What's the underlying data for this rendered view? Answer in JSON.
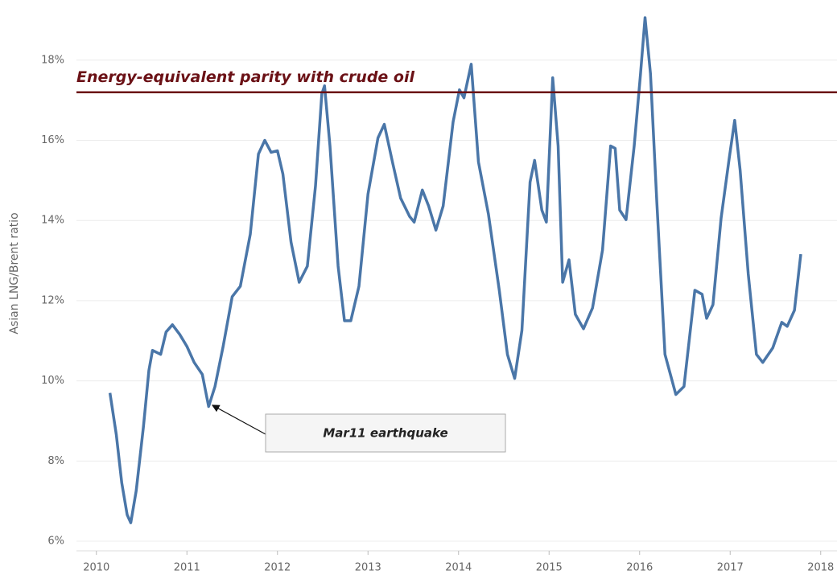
{
  "chart_data": {
    "type": "line",
    "y_label": "Asian LNG/Brent ratio",
    "xlim": [
      2009.78,
      2018.18
    ],
    "xticks": [
      2010,
      2011,
      2012,
      2013,
      2014,
      2015,
      2016,
      2017,
      2018
    ],
    "ylim": [
      5.76,
      19.3
    ],
    "yticks": [
      {
        "value": 6,
        "label": "6%"
      },
      {
        "value": 8,
        "label": "8%"
      },
      {
        "value": 10,
        "label": "10%"
      },
      {
        "value": 12,
        "label": "12%"
      },
      {
        "value": 14,
        "label": "14%"
      },
      {
        "value": 16,
        "label": "16%"
      },
      {
        "value": 18,
        "label": "18%"
      }
    ],
    "grid": true,
    "series": [
      {
        "color": "#4a76a8",
        "x": [
          2010.15,
          2010.22,
          2010.28,
          2010.34,
          2010.38,
          2010.44,
          2010.52,
          2010.58,
          2010.62,
          2010.71,
          2010.77,
          2010.84,
          2010.92,
          2011.0,
          2011.08,
          2011.17,
          2011.24,
          2011.31,
          2011.4,
          2011.5,
          2011.59,
          2011.7,
          2011.79,
          2011.86,
          2011.93,
          2012.0,
          2012.06,
          2012.15,
          2012.24,
          2012.33,
          2012.42,
          2012.49,
          2012.52,
          2012.58,
          2012.67,
          2012.74,
          2012.81,
          2012.9,
          2013.0,
          2013.11,
          2013.18,
          2013.27,
          2013.36,
          2013.46,
          2013.51,
          2013.6,
          2013.67,
          2013.75,
          2013.83,
          2013.94,
          2014.01,
          2014.06,
          2014.14,
          2014.22,
          2014.33,
          2014.45,
          2014.54,
          2014.62,
          2014.7,
          2014.79,
          2014.84,
          2014.92,
          2014.97,
          2015.04,
          2015.1,
          2015.15,
          2015.22,
          2015.29,
          2015.38,
          2015.48,
          2015.59,
          2015.68,
          2015.73,
          2015.78,
          2015.85,
          2015.94,
          2016.01,
          2016.06,
          2016.12,
          2016.19,
          2016.28,
          2016.4,
          2016.49,
          2016.61,
          2016.69,
          2016.74,
          2016.81,
          2016.9,
          2016.99,
          2017.05,
          2017.11,
          2017.2,
          2017.29,
          2017.36,
          2017.47,
          2017.57,
          2017.63,
          2017.71,
          2017.78
        ],
        "values": [
          9.7,
          8.66,
          7.46,
          6.66,
          6.46,
          7.26,
          8.86,
          10.26,
          10.76,
          10.66,
          11.22,
          11.4,
          11.16,
          10.86,
          10.46,
          10.16,
          9.36,
          9.86,
          10.86,
          12.1,
          12.36,
          13.66,
          15.66,
          16.0,
          15.7,
          15.74,
          15.16,
          13.46,
          12.46,
          12.86,
          14.86,
          17.16,
          17.36,
          15.86,
          12.86,
          11.5,
          11.5,
          12.36,
          14.66,
          16.06,
          16.4,
          15.46,
          14.56,
          14.1,
          13.96,
          14.76,
          14.36,
          13.76,
          14.36,
          16.46,
          17.26,
          17.06,
          17.9,
          15.46,
          14.16,
          12.26,
          10.66,
          10.06,
          11.26,
          14.96,
          15.5,
          14.26,
          13.96,
          17.56,
          15.86,
          12.46,
          13.02,
          11.66,
          11.3,
          11.82,
          13.26,
          15.86,
          15.8,
          14.26,
          14.02,
          15.86,
          17.66,
          19.06,
          17.66,
          14.46,
          10.66,
          9.66,
          9.86,
          12.26,
          12.16,
          11.56,
          11.9,
          14.06,
          15.56,
          16.5,
          15.26,
          12.66,
          10.66,
          10.46,
          10.82,
          11.46,
          11.36,
          11.76,
          13.16
        ]
      }
    ],
    "reference_line": {
      "value": 17.2,
      "label": "Energy-equivalent parity with crude oil",
      "color": "#6b1116"
    },
    "annotation": {
      "text": "Mar11 earthquake"
    }
  }
}
